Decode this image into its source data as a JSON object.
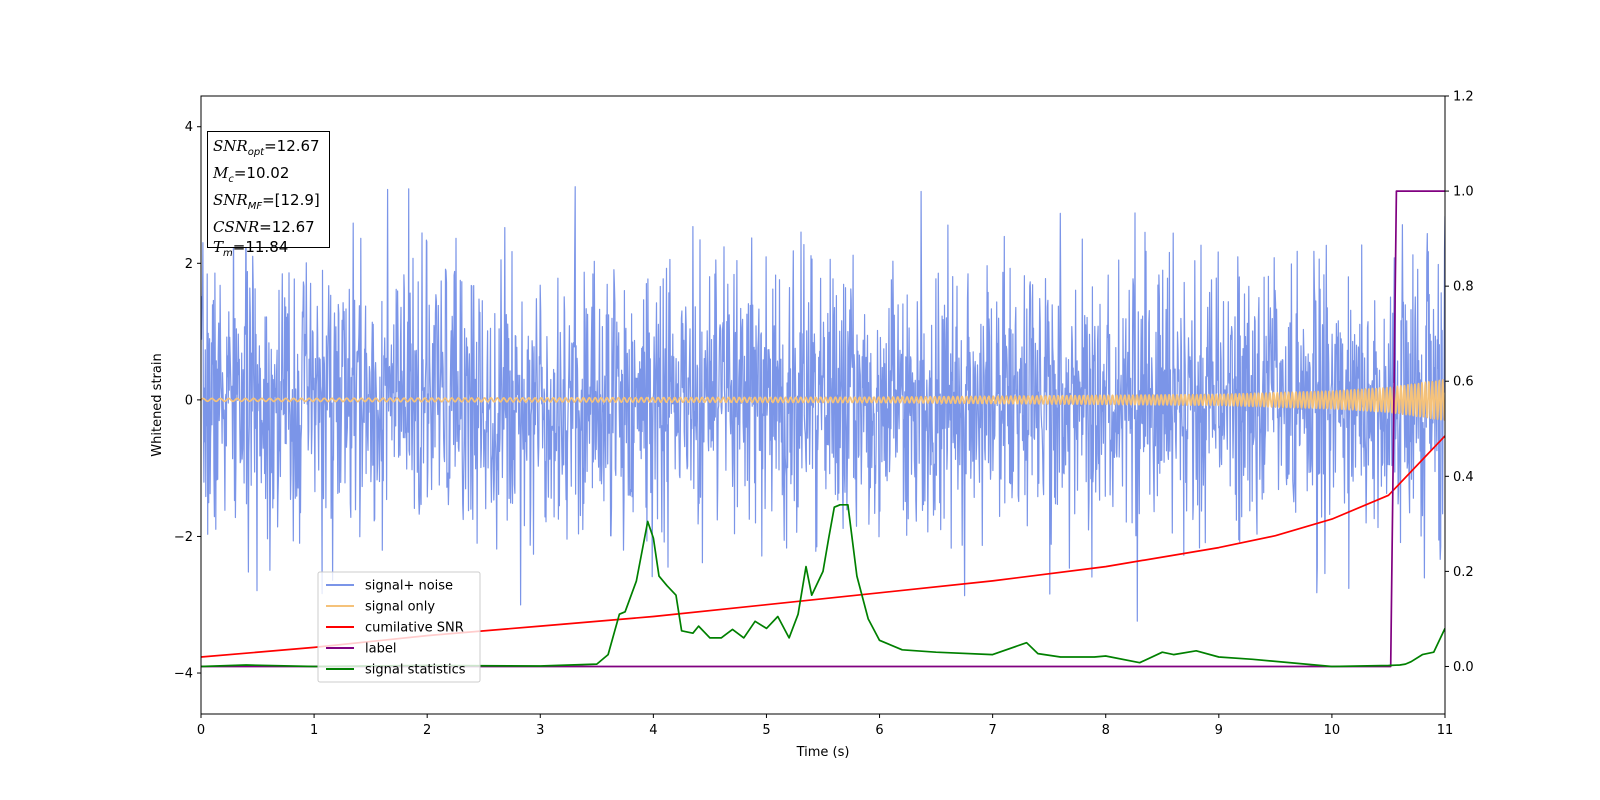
{
  "chart_data": {
    "type": "line",
    "xlabel": "Time (s)",
    "ylabel": "Whitened strain",
    "xlim": [
      0,
      11
    ],
    "ylim_left": [
      -4.6,
      4.45
    ],
    "ylim_right": [
      -0.1,
      1.2
    ],
    "xticks": [
      "0",
      "1",
      "2",
      "3",
      "4",
      "5",
      "6",
      "7",
      "8",
      "9",
      "10",
      "11"
    ],
    "yticks_left": [
      "4",
      "2",
      "0",
      "−2",
      "−4"
    ],
    "yticks_right": [
      "1.2",
      "1.0",
      "0.8",
      "0.6",
      "0.4",
      "0.2",
      "0.0"
    ],
    "legend_position": "lower-left",
    "annotation": {
      "snr_opt": {
        "sym": "SNR",
        "sub": "opt",
        "value": "=12.67"
      },
      "mc": {
        "sym": "M",
        "sub": "c",
        "value": "=10.02"
      },
      "snr_mf": {
        "sym": "SNR",
        "sub": "MF",
        "value": "=[12.9]"
      },
      "csnr": {
        "sym": "CSNR",
        "value": "=12.67"
      },
      "tm": {
        "sym": "T",
        "sub": "m",
        "value": "=11.84"
      }
    },
    "series": [
      {
        "name": "signal+ noise",
        "axis": "left",
        "color": "#7b95e8",
        "kind": "noise",
        "sigma": 1.0,
        "seed": 7
      },
      {
        "name": "signal only",
        "axis": "left",
        "color": "#f5c27a",
        "kind": "chirp",
        "amplitude_points": {
          "t": [
            0,
            6,
            9,
            10,
            10.5,
            11
          ],
          "a": [
            0.02,
            0.04,
            0.08,
            0.13,
            0.18,
            0.3
          ]
        }
      },
      {
        "name": "cumilative SNR",
        "axis": "right",
        "color": "#ff0000",
        "x": [
          0,
          1,
          2,
          3,
          4,
          5,
          6,
          7,
          8,
          9,
          9.5,
          10,
          10.5,
          11
        ],
        "y": [
          0.02,
          0.04,
          0.065,
          0.085,
          0.105,
          0.13,
          0.155,
          0.18,
          0.21,
          0.25,
          0.275,
          0.31,
          0.36,
          0.485
        ]
      },
      {
        "name": "label",
        "axis": "right",
        "color": "#800080",
        "x": [
          0,
          10.52,
          10.57,
          11
        ],
        "y": [
          0,
          0,
          1,
          1
        ]
      },
      {
        "name": "signal statistics",
        "axis": "right",
        "color": "#008000",
        "x": [
          0,
          0.4,
          1,
          2,
          3,
          3.5,
          3.6,
          3.7,
          3.75,
          3.85,
          3.95,
          4.0,
          4.05,
          4.12,
          4.2,
          4.25,
          4.35,
          4.4,
          4.5,
          4.6,
          4.7,
          4.8,
          4.9,
          5.0,
          5.1,
          5.2,
          5.28,
          5.35,
          5.4,
          5.5,
          5.55,
          5.6,
          5.65,
          5.72,
          5.8,
          5.9,
          6.0,
          6.2,
          6.5,
          7.0,
          7.3,
          7.4,
          7.6,
          7.9,
          8.0,
          8.3,
          8.5,
          8.6,
          8.8,
          9.0,
          9.3,
          10.0,
          10.5,
          10.6,
          10.65,
          10.7,
          10.8,
          10.9,
          11.0
        ],
        "y": [
          0.0,
          0.003,
          0.0,
          0.002,
          0.001,
          0.005,
          0.025,
          0.11,
          0.115,
          0.18,
          0.305,
          0.27,
          0.19,
          0.17,
          0.15,
          0.075,
          0.07,
          0.085,
          0.06,
          0.06,
          0.078,
          0.06,
          0.095,
          0.08,
          0.105,
          0.06,
          0.11,
          0.21,
          0.15,
          0.2,
          0.27,
          0.335,
          0.34,
          0.34,
          0.19,
          0.1,
          0.055,
          0.035,
          0.03,
          0.025,
          0.05,
          0.027,
          0.02,
          0.02,
          0.022,
          0.008,
          0.03,
          0.025,
          0.033,
          0.02,
          0.015,
          0.0,
          0.002,
          0.003,
          0.005,
          0.01,
          0.025,
          0.03,
          0.08
        ]
      }
    ]
  }
}
